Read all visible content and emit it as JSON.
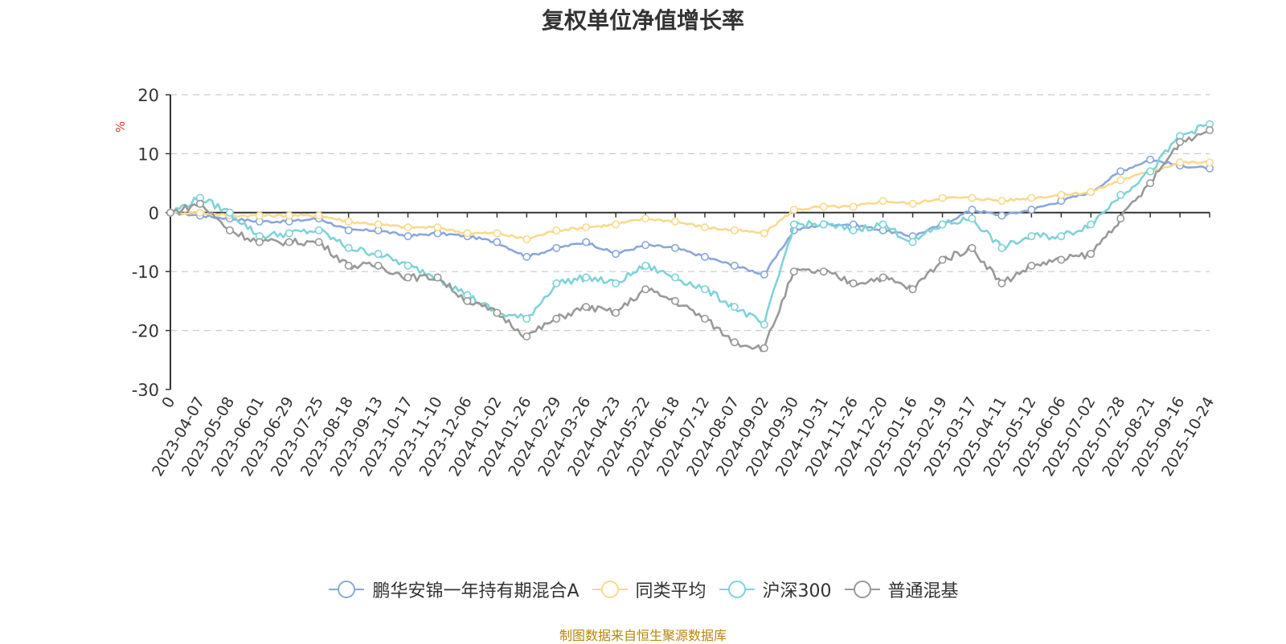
{
  "chart_data": {
    "type": "line",
    "title": "复权单位净值增长率",
    "ylabel": "%",
    "ylim": [
      -30,
      20
    ],
    "yticks": [
      -30,
      -20,
      -10,
      0,
      10,
      20
    ],
    "grid": true,
    "legend_position": "bottom",
    "categories": [
      "0",
      "2023-04-07",
      "2023-05-08",
      "2023-06-01",
      "2023-06-29",
      "2023-07-25",
      "2023-08-18",
      "2023-09-13",
      "2023-10-17",
      "2023-11-10",
      "2023-12-06",
      "2024-01-02",
      "2024-01-26",
      "2024-02-29",
      "2024-03-26",
      "2024-04-23",
      "2024-05-22",
      "2024-06-18",
      "2024-07-12",
      "2024-08-07",
      "2024-09-02",
      "2024-09-30",
      "2024-10-31",
      "2024-11-26",
      "2024-12-20",
      "2025-01-16",
      "2025-02-19",
      "2025-03-17",
      "2025-04-11",
      "2025-05-12",
      "2025-06-06",
      "2025-07-02",
      "2025-07-28",
      "2025-08-21",
      "2025-09-16",
      "2025-10-24"
    ],
    "series": [
      {
        "name": "鹏华安锦一年持有期混合A",
        "color": "#8aa8d8",
        "values": [
          0,
          -0.5,
          -1,
          -1.5,
          -1.5,
          -1,
          -3,
          -3,
          -4,
          -3.5,
          -4,
          -5,
          -7.5,
          -6,
          -5,
          -7,
          -5.5,
          -6,
          -7.5,
          -9,
          -10.5,
          -3,
          -2,
          -2,
          -3,
          -4,
          -2,
          0.5,
          -0.5,
          0.5,
          2,
          3.5,
          7,
          9,
          8,
          7.5
        ]
      },
      {
        "name": "同类平均",
        "color": "#f9d98c",
        "values": [
          0,
          0,
          -0.5,
          -0.5,
          -0.5,
          -0.5,
          -1.5,
          -2,
          -2.5,
          -2.5,
          -3.5,
          -3.5,
          -4.5,
          -3,
          -2.5,
          -2,
          -1,
          -1.5,
          -2.5,
          -3,
          -3.5,
          0.5,
          1,
          1,
          2,
          1.5,
          2.5,
          2.5,
          2,
          2.5,
          3,
          3.5,
          5.5,
          7,
          8.5,
          8.5
        ]
      },
      {
        "name": "沪深300",
        "color": "#7fd3d6",
        "values": [
          0,
          2.5,
          0,
          -4,
          -3.5,
          -3,
          -6,
          -7,
          -9,
          -11,
          -14,
          -17,
          -18,
          -12,
          -11,
          -12,
          -9,
          -11,
          -13,
          -16,
          -19,
          -2,
          -2,
          -3,
          -2,
          -5,
          -2,
          -1,
          -6,
          -4,
          -4,
          -2,
          3,
          7,
          13,
          15
        ]
      },
      {
        "name": "普通混基",
        "color": "#999999",
        "values": [
          0,
          1.5,
          -3,
          -5,
          -5,
          -5,
          -9,
          -9,
          -11,
          -11,
          -15,
          -17,
          -21,
          -18,
          -16,
          -17,
          -13,
          -15,
          -18,
          -22,
          -23,
          -10,
          -10,
          -12,
          -11,
          -13,
          -8,
          -6,
          -12,
          -9,
          -8,
          -7,
          -1,
          5,
          12,
          14
        ]
      }
    ]
  },
  "source_note": "制图数据来自恒生聚源数据库"
}
